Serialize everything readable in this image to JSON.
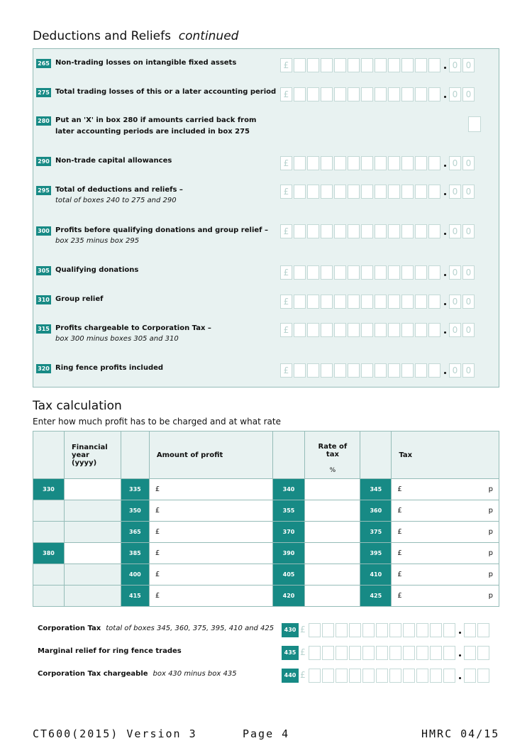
{
  "header": {
    "title": "Deductions and Reliefs",
    "title_suffix": "continued"
  },
  "deductions": [
    {
      "box": "265",
      "label": "Non-trading losses on intangible fixed assets",
      "sub": ""
    },
    {
      "box": "275",
      "label": "Total trading losses of this or a later accounting period",
      "sub": ""
    },
    {
      "box": "280",
      "label": "Put an 'X' in box 280 if amounts carried back from later accounting periods are included in box 275",
      "sub": ""
    },
    {
      "box": "290",
      "label": "Non-trade capital allowances",
      "sub": ""
    },
    {
      "box": "295",
      "label": "Total of deductions and reliefs –",
      "sub": "total of boxes 240 to 275 and 290"
    },
    {
      "box": "300",
      "label": "Profits before qualifying donations and group relief –",
      "sub": "box 235 minus box 295"
    },
    {
      "box": "305",
      "label": "Qualifying donations",
      "sub": ""
    },
    {
      "box": "310",
      "label": "Group relief",
      "sub": ""
    },
    {
      "box": "315",
      "label": "Profits chargeable to Corporation Tax –",
      "sub": "box 300 minus boxes 305 and 310"
    },
    {
      "box": "320",
      "label": "Ring fence profits included",
      "sub": ""
    }
  ],
  "money": {
    "pound": "£",
    "zero": "0"
  },
  "tax_calc": {
    "title": "Tax calculation",
    "intro": "Enter how much profit has to be charged and at what rate",
    "headers": {
      "fy": "Financial year (yyyy)",
      "amount": "Amount of profit",
      "rate": "Rate of tax",
      "rate_unit": "%",
      "tax": "Tax"
    },
    "rows": [
      {
        "fy_box": "330",
        "amt_box": "335",
        "rate_box": "340",
        "tax_box": "345"
      },
      {
        "fy_box": "",
        "amt_box": "350",
        "rate_box": "355",
        "tax_box": "360"
      },
      {
        "fy_box": "",
        "amt_box": "365",
        "rate_box": "370",
        "tax_box": "375"
      },
      {
        "fy_box": "380",
        "amt_box": "385",
        "rate_box": "390",
        "tax_box": "395"
      },
      {
        "fy_box": "",
        "amt_box": "400",
        "rate_box": "405",
        "tax_box": "410"
      },
      {
        "fy_box": "",
        "amt_box": "415",
        "rate_box": "420",
        "tax_box": "425"
      }
    ],
    "pound": "£",
    "pence": "p"
  },
  "totals": [
    {
      "box": "430",
      "label": "Corporation Tax",
      "sub": "total of boxes 345, 360, 375, 395, 410 and 425"
    },
    {
      "box": "435",
      "label": "Marginal relief for ring fence trades",
      "sub": ""
    },
    {
      "box": "440",
      "label": "Corporation Tax chargeable",
      "sub": "box 430 minus box 435"
    }
  ],
  "footer": {
    "form": "CT600(2015) Version 3",
    "page": "Page 4",
    "ref": "HMRC 04/15"
  }
}
